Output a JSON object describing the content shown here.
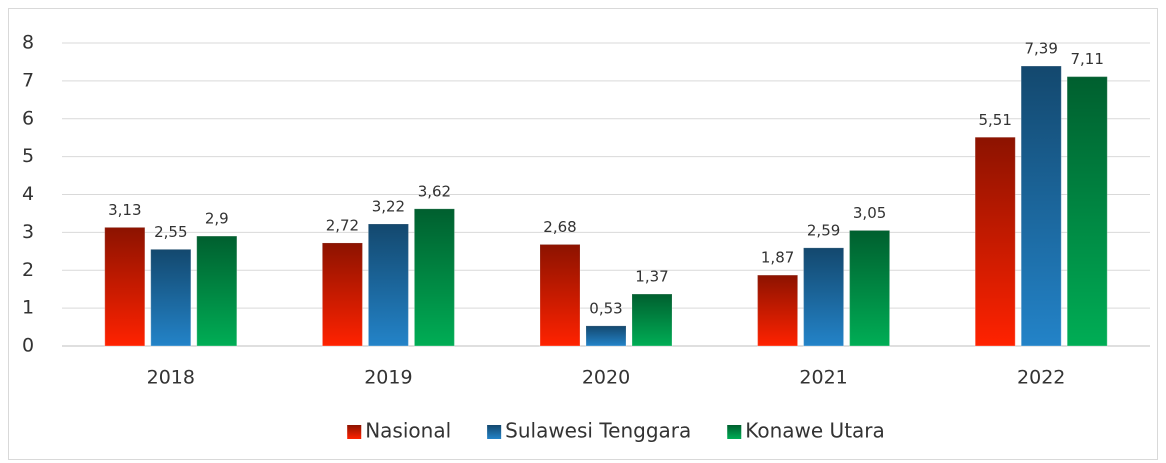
{
  "chart_data": {
    "type": "bar",
    "categories": [
      "2018",
      "2019",
      "2020",
      "2021",
      "2022"
    ],
    "series": [
      {
        "name": "Nasional",
        "color": "#ff2200",
        "values": [
          3.13,
          2.72,
          2.68,
          1.87,
          5.51
        ],
        "value_labels": [
          "3,13",
          "2,72",
          "2,68",
          "1,87",
          "5,51"
        ]
      },
      {
        "name": "Sulawesi Tenggara",
        "color": "#2383c8",
        "values": [
          2.55,
          3.22,
          0.53,
          2.59,
          7.39
        ],
        "value_labels": [
          "2,55",
          "3,22",
          "0,53",
          "2,59",
          "7,39"
        ]
      },
      {
        "name": "Konawe Utara",
        "color": "#00ad55",
        "values": [
          2.9,
          3.62,
          1.37,
          3.05,
          7.11
        ],
        "value_labels": [
          "2,9",
          "3,62",
          "1,37",
          "3,05",
          "7,11"
        ]
      }
    ],
    "ylim": [
      0,
      8
    ],
    "yticks": [
      0,
      1,
      2,
      3,
      4,
      5,
      6,
      7,
      8
    ],
    "grid": true,
    "legend": "bottom"
  }
}
